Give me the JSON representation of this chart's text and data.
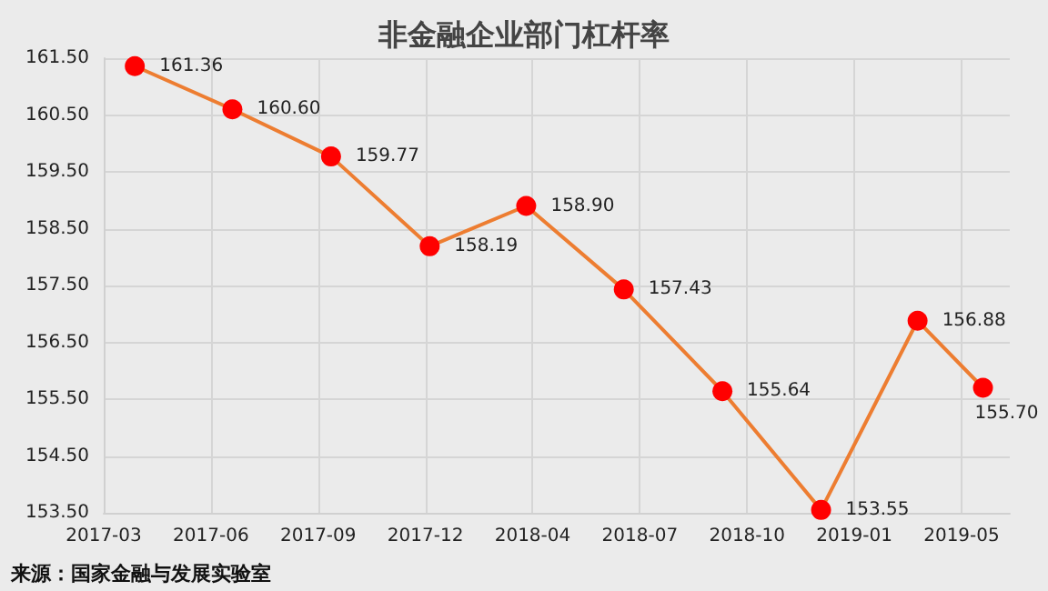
{
  "chart_data": {
    "type": "line",
    "title": "非金融企业部门杠杆率",
    "annotations": [
      "来源：国家金融与发展实验室"
    ],
    "x": [
      "2017-03-31",
      "2017-06-30",
      "2017-09-30",
      "2017-12-31",
      "2018-03-31",
      "2018-06-30",
      "2018-09-30",
      "2018-12-31",
      "2019-03-31",
      "2019-05-31"
    ],
    "series": [
      {
        "color": "#ed7d31",
        "colors": [
          "#ff0000",
          "#ff0000",
          "#ff0000",
          "#ff0000",
          "#ff0000",
          "#ff0000",
          "#ff0000",
          "#ff0000",
          "#ff0000",
          "#ff0000"
        ],
        "values": [
          161.36,
          160.6,
          159.77,
          158.19,
          158.9,
          157.43,
          155.64,
          153.55,
          156.88,
          155.7
        ],
        "value_labels": [
          "161.36",
          "160.60",
          "159.77",
          "158.19",
          "158.90",
          "157.43",
          "155.64",
          "153.55",
          "156.88",
          "155.70"
        ]
      }
    ],
    "xlim": [
      "2017-03-02",
      "2019-06-25"
    ],
    "xticks": [
      {
        "value": "2017-03-02",
        "label": "2017-03"
      },
      {
        "value": "2017-06-10",
        "label": "2017-06"
      },
      {
        "value": "2017-09-18",
        "label": "2017-09"
      },
      {
        "value": "2017-12-27",
        "label": "2017-12"
      },
      {
        "value": "2018-04-06",
        "label": "2018-04"
      },
      {
        "value": "2018-07-15",
        "label": "2018-07"
      },
      {
        "value": "2018-10-23",
        "label": "2018-10"
      },
      {
        "value": "2019-01-31",
        "label": "2019-01"
      },
      {
        "value": "2019-05-11",
        "label": "2019-05"
      }
    ],
    "ylim": [
      153.5,
      161.5
    ],
    "yticks": [
      {
        "value": 153.5,
        "label": "153.50"
      },
      {
        "value": 154.5,
        "label": "154.50"
      },
      {
        "value": 155.5,
        "label": "155.50"
      },
      {
        "value": 156.5,
        "label": "156.50"
      },
      {
        "value": 157.5,
        "label": "157.50"
      },
      {
        "value": 158.5,
        "label": "158.50"
      },
      {
        "value": 159.5,
        "label": "159.50"
      },
      {
        "value": 160.5,
        "label": "160.50"
      },
      {
        "value": 161.5,
        "label": "161.50"
      }
    ],
    "grid": true,
    "marker": "circle",
    "line_style": "solid"
  }
}
